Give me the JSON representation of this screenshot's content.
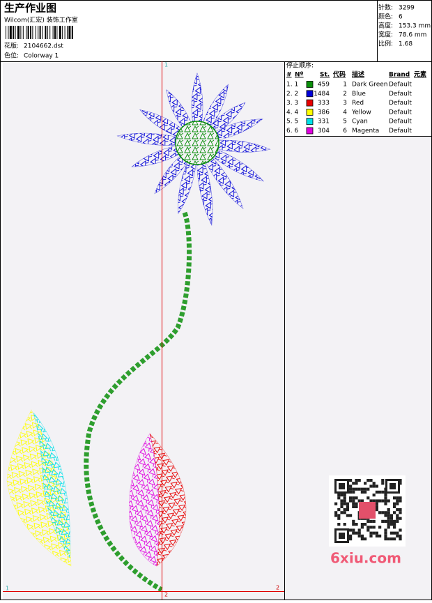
{
  "header": {
    "title": "生产作业图",
    "studio": "Wilcom(汇宏) 装饰工作室",
    "design_label": "花版:",
    "design": "2104662.dst",
    "colorway_label": "色位:",
    "colorway": "Colorway 1"
  },
  "info": [
    {
      "label": "针数:",
      "value": "3299"
    },
    {
      "label": "颜色:",
      "value": "6"
    },
    {
      "label": "高度:",
      "value": "153.3 mm"
    },
    {
      "label": "宽度:",
      "value": "78.6 mm"
    },
    {
      "label": "比例:",
      "value": "1.68"
    }
  ],
  "stop_sequence": {
    "title": "停止顺序:",
    "columns": [
      "#",
      "Nº",
      "St.",
      "代码",
      "描述",
      "Brand",
      "元素"
    ],
    "rows": [
      {
        "index": "1. 1",
        "color": "#0a8f0a",
        "stitches": "459",
        "code": "1",
        "description": "Dark Green",
        "brand": "Default"
      },
      {
        "index": "2. 2",
        "color": "#0000d8",
        "stitches": "1484",
        "code": "2",
        "description": "Blue",
        "brand": "Default"
      },
      {
        "index": "3. 3",
        "color": "#e80000",
        "stitches": "333",
        "code": "3",
        "description": "Red",
        "brand": "Default"
      },
      {
        "index": "4. 4",
        "color": "#ffff00",
        "stitches": "386",
        "code": "4",
        "description": "Yellow",
        "brand": "Default"
      },
      {
        "index": "5. 5",
        "color": "#00e0e8",
        "stitches": "331",
        "code": "5",
        "description": "Cyan",
        "brand": "Default"
      },
      {
        "index": "6. 6",
        "color": "#e000e0",
        "stitches": "304",
        "code": "6",
        "description": "Magenta",
        "brand": "Default"
      }
    ]
  },
  "axes": {
    "top": "1",
    "left": "1",
    "right": "2",
    "bottom": "2"
  },
  "watermark": "6xiu.com"
}
